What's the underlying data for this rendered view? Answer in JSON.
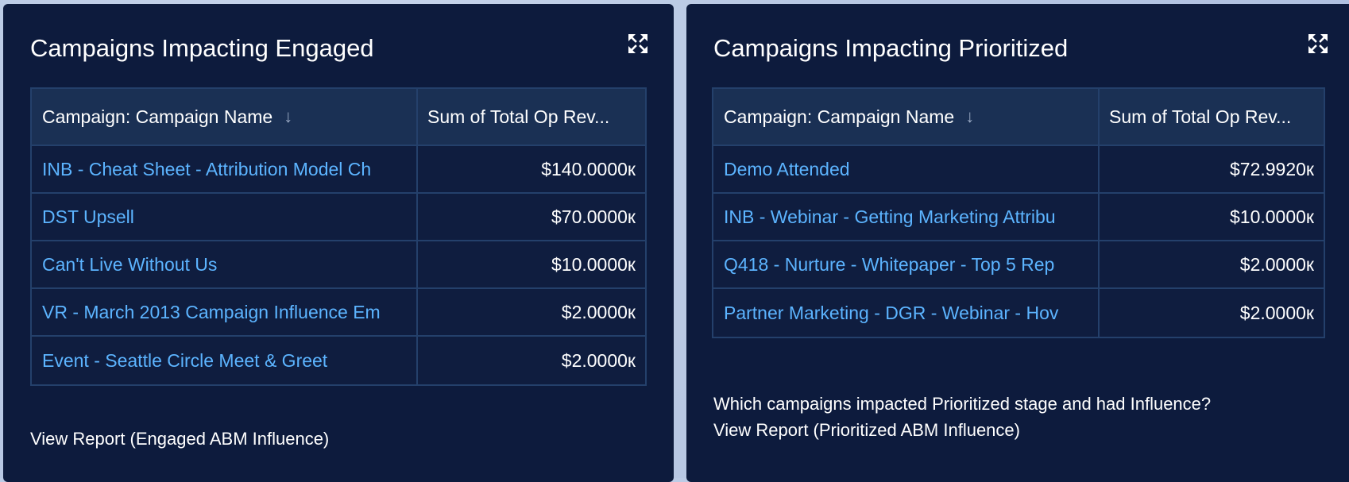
{
  "panels": [
    {
      "title": "Campaigns Impacting Engaged",
      "expand_icon": "expand-arrows-icon",
      "columns": [
        "Campaign: Campaign Name",
        "Sum of Total Op Rev..."
      ],
      "sort_icon": "↓",
      "rows": [
        {
          "name": "INB - Cheat Sheet - Attribution Model Ch",
          "value": "$140.0000к"
        },
        {
          "name": "DST Upsell",
          "value": "$70.0000к"
        },
        {
          "name": "Can't Live Without Us",
          "value": "$10.0000к"
        },
        {
          "name": "VR - March 2013 Campaign Influence Em",
          "value": "$2.0000к"
        },
        {
          "name": "Event - Seattle Circle Meet & Greet",
          "value": "$2.0000к"
        }
      ],
      "description": "",
      "report_link": "View Report (Engaged ABM Influence)"
    },
    {
      "title": "Campaigns Impacting Prioritized",
      "expand_icon": "expand-arrows-icon",
      "columns": [
        "Campaign: Campaign Name",
        "Sum of Total Op Rev..."
      ],
      "sort_icon": "↓",
      "rows": [
        {
          "name": "Demo Attended",
          "value": "$72.9920к"
        },
        {
          "name": "INB - Webinar - Getting Marketing Attribu",
          "value": "$10.0000к"
        },
        {
          "name": "Q418 - Nurture - Whitepaper - Top 5 Rep",
          "value": "$2.0000к"
        },
        {
          "name": "Partner Marketing - DGR - Webinar - Hov",
          "value": "$2.0000к"
        }
      ],
      "description": "Which campaigns impacted Prioritized stage and had Influence?",
      "report_link": "View Report (Prioritized ABM Influence)"
    }
  ],
  "colors": {
    "card_bg": "#0d1b3d",
    "header_bg": "#1a3054",
    "border": "#24406b",
    "link": "#5cb4ff",
    "text": "#ffffff"
  }
}
